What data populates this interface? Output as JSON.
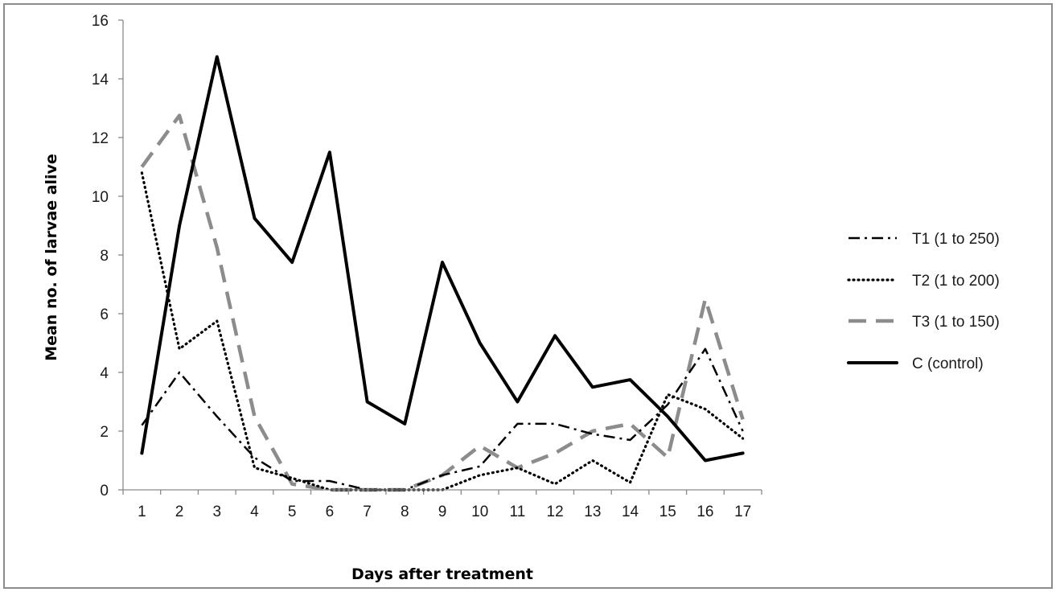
{
  "chart_data": {
    "type": "line",
    "title": "",
    "xlabel": "Days after treatment",
    "ylabel": "Mean no. of larvae alive",
    "x": [
      1,
      2,
      3,
      4,
      5,
      6,
      7,
      8,
      9,
      10,
      11,
      12,
      13,
      14,
      15,
      16,
      17
    ],
    "xticks": [
      "1",
      "2",
      "3",
      "4",
      "5",
      "6",
      "7",
      "8",
      "9",
      "10",
      "11",
      "12",
      "13",
      "14",
      "15",
      "16",
      "17"
    ],
    "ylim": [
      0,
      16
    ],
    "yticks": [
      "0",
      "2",
      "4",
      "6",
      "8",
      "10",
      "12",
      "14",
      "16"
    ],
    "grid": false,
    "legend_position": "right",
    "series": [
      {
        "name": "T1 (1 to 250)",
        "style": "dash-dot",
        "color": "#000000",
        "values": [
          2.2,
          4.0,
          2.5,
          1.1,
          0.3,
          0.3,
          0.0,
          0.0,
          0.5,
          0.8,
          2.25,
          2.25,
          1.9,
          1.7,
          2.9,
          4.8,
          2.0
        ]
      },
      {
        "name": "T2 (1 to 200)",
        "style": "dotted",
        "color": "#000000",
        "values": [
          10.8,
          4.8,
          5.75,
          0.75,
          0.4,
          0.0,
          0.0,
          0.0,
          0.0,
          0.5,
          0.75,
          0.2,
          1.0,
          0.25,
          3.25,
          2.75,
          1.75
        ]
      },
      {
        "name": "T3 (1 to 150)",
        "style": "dashed",
        "color": "#8c8c8c",
        "values": [
          11.0,
          12.75,
          8.25,
          2.5,
          0.2,
          0.0,
          0.0,
          0.0,
          0.5,
          1.5,
          0.75,
          1.25,
          2.0,
          2.25,
          1.1,
          6.5,
          2.4
        ]
      },
      {
        "name": "C (control)",
        "style": "solid",
        "color": "#000000",
        "values": [
          1.25,
          9.0,
          14.75,
          9.25,
          7.75,
          11.5,
          3.0,
          2.25,
          7.75,
          5.0,
          3.0,
          5.25,
          3.5,
          3.75,
          2.5,
          1.0,
          1.25
        ]
      }
    ]
  }
}
